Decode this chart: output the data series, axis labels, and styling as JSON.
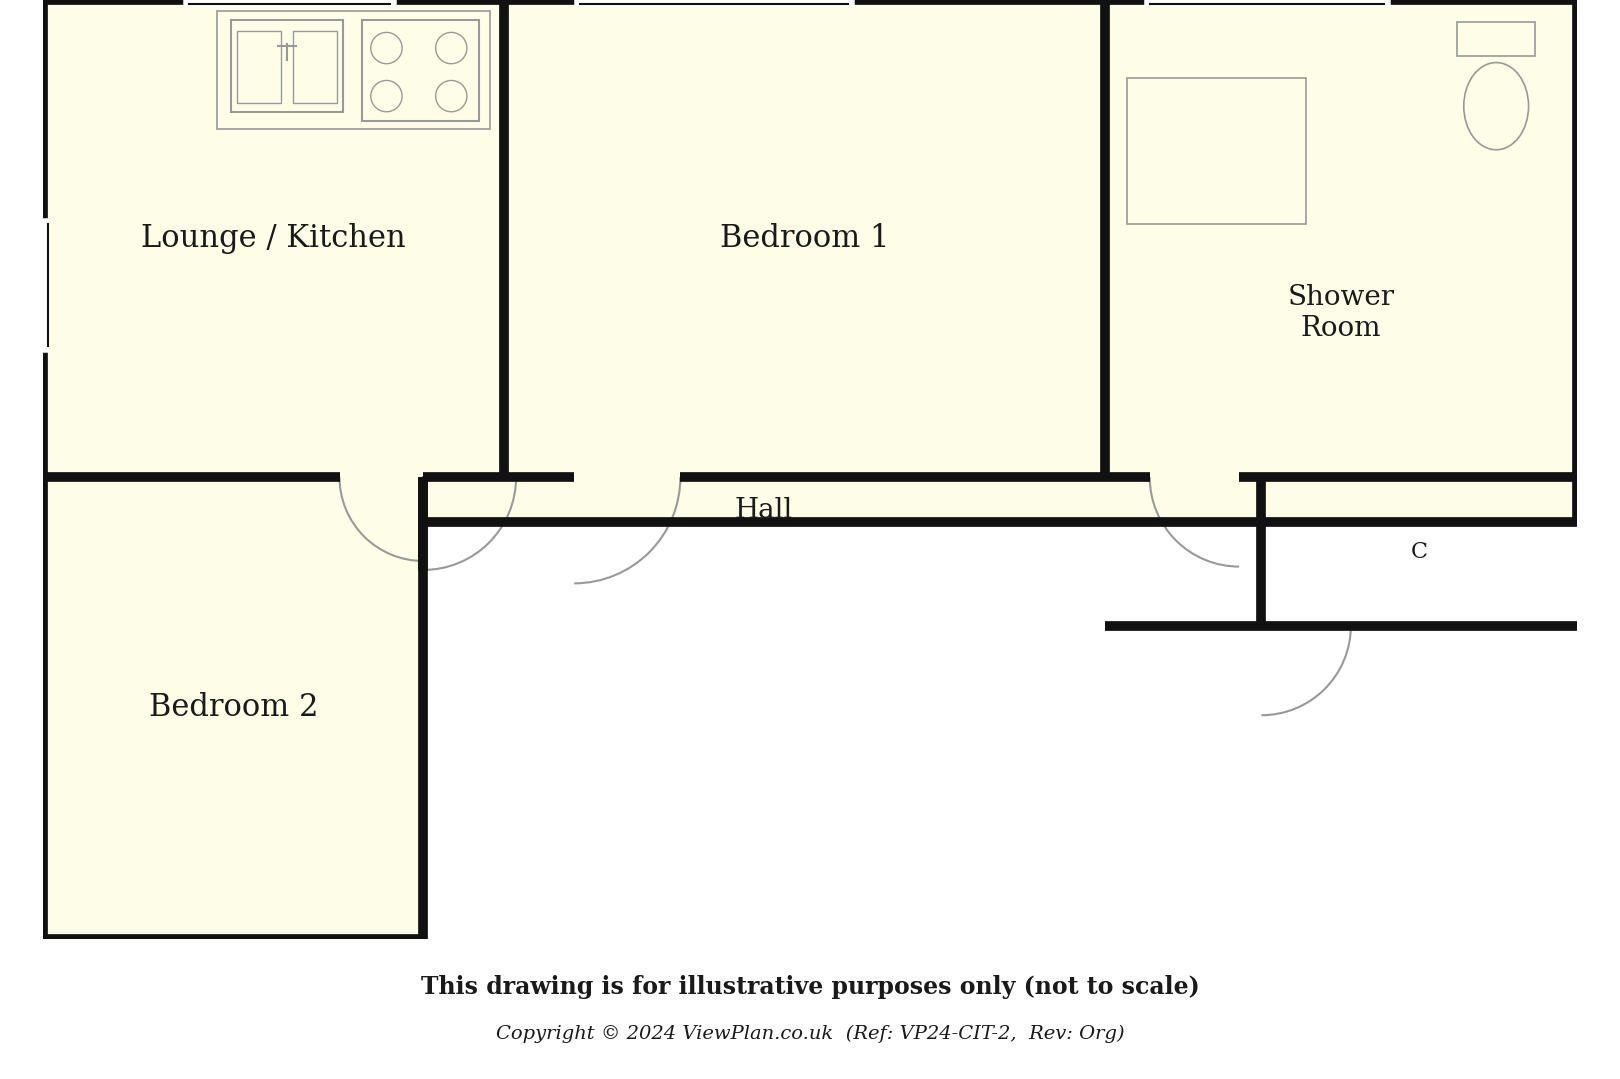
{
  "bg_color": "#ffffff",
  "floor_fill": "#fefee8",
  "wall_color": "#111111",
  "thin_color": "#999999",
  "rooms": {
    "lounge_kitchen": {
      "label": "Lounge / Kitchen"
    },
    "bedroom1": {
      "label": "Bedroom 1"
    },
    "shower_room": {
      "label": "Shower\nRoom"
    },
    "hall": {
      "label": "Hall"
    },
    "bedroom2": {
      "label": "Bedroom 2"
    }
  },
  "closet_label": "C",
  "footer_line1": "This drawing is for illustrative purposes only (not to scale)",
  "footer_line2": "Copyright © 2024 ViewPlan.co.uk  (Ref: VP24-CIT-2,  Rev: Org)"
}
